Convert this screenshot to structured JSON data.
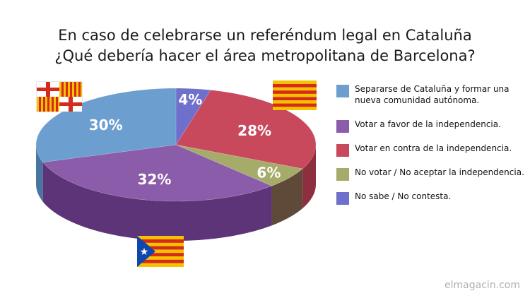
{
  "title_lines": [
    "En caso de celebrarse un referéndum legal en Cataluña",
    "¿Qué debería hacer el área metropolitana de Barcelona?"
  ],
  "watermark": "elmagacin.com",
  "chart_data": {
    "type": "pie",
    "title": "En caso de celebrarse un referéndum legal en Cataluña ¿Qué debería hacer el área metropolitana de Barcelona?",
    "slices": [
      {
        "label": "No sabe / No contesta.",
        "value": 4,
        "display": "4%",
        "color": "#6f6fcc",
        "side": "#4b4b99"
      },
      {
        "label": "Votar en contra de la independencia.",
        "value": 28,
        "display": "28%",
        "color": "#c8485c",
        "side": "#8e2f3f"
      },
      {
        "label": "No votar / No aceptar la independencia.",
        "value": 6,
        "display": "6%",
        "color": "#a6ab6a",
        "side": "#5f4a3a"
      },
      {
        "label": "Votar a favor de la independencia.",
        "value": 32,
        "display": "32%",
        "color": "#8b5ca9",
        "side": "#5e3478"
      },
      {
        "label": "Separarse de Cataluña y formar una nueva comunidad autónoma.",
        "value": 30,
        "display": "30%",
        "color": "#6c9fcf",
        "side": "#4a74a0"
      }
    ],
    "legend": [
      {
        "text": "Separarse de Cataluña y formar una nueva comunidad autónoma.",
        "color": "#6c9fcf"
      },
      {
        "text": "Votar a favor de la independencia.",
        "color": "#8b5ca9"
      },
      {
        "text": "Votar en contra de la independencia.",
        "color": "#c8485c"
      },
      {
        "text": "No votar / No aceptar la independencia.",
        "color": "#a6ab6a"
      },
      {
        "text": "No sabe / No contesta.",
        "color": "#6f6fcc"
      }
    ],
    "legend_position": "right"
  },
  "flags": [
    {
      "name": "barcelona-flag"
    },
    {
      "name": "senyera-flag"
    },
    {
      "name": "estelada-flag"
    }
  ]
}
